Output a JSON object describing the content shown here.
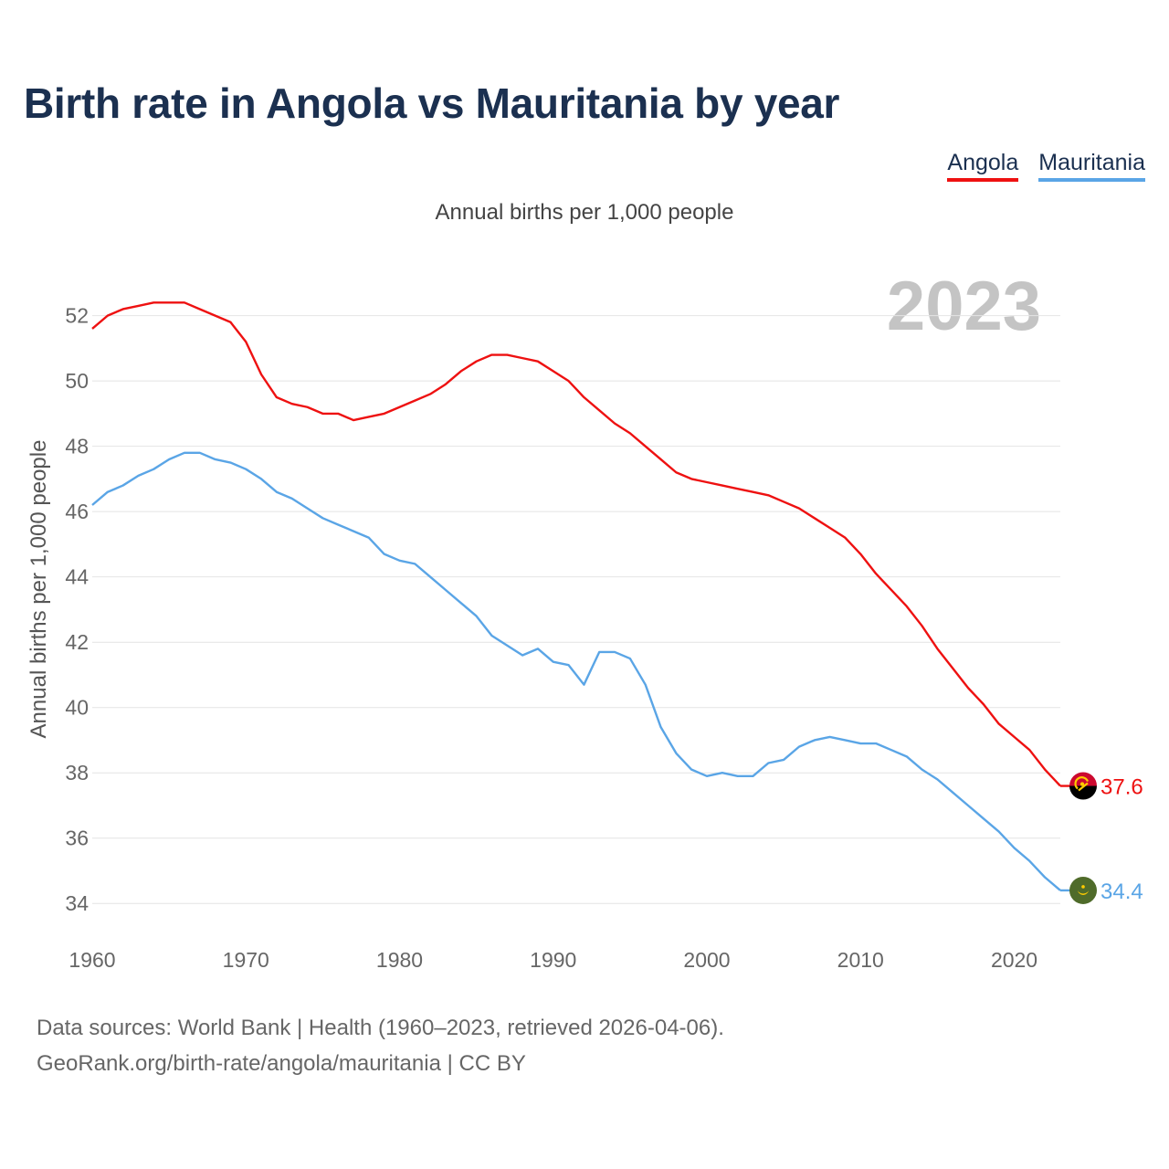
{
  "chart_data": {
    "type": "line",
    "title": "Birth rate in Angola vs Mauritania by year",
    "subtitle": "Annual births per 1,000 people",
    "ylabel": "Annual births per 1,000 people",
    "xlabel": "",
    "year_badge": "2023",
    "xlim": [
      1960,
      2023
    ],
    "ylim": [
      33,
      53.5
    ],
    "x_ticks": [
      1960,
      1970,
      1980,
      1990,
      2000,
      2010,
      2020
    ],
    "y_ticks": [
      34,
      36,
      38,
      40,
      42,
      44,
      46,
      48,
      50,
      52
    ],
    "grid": true,
    "legend_position": "top-right",
    "x": [
      1960,
      1961,
      1962,
      1963,
      1964,
      1965,
      1966,
      1967,
      1968,
      1969,
      1970,
      1971,
      1972,
      1973,
      1974,
      1975,
      1976,
      1977,
      1978,
      1979,
      1980,
      1981,
      1982,
      1983,
      1984,
      1985,
      1986,
      1987,
      1988,
      1989,
      1990,
      1991,
      1992,
      1993,
      1994,
      1995,
      1996,
      1997,
      1998,
      1999,
      2000,
      2001,
      2002,
      2003,
      2004,
      2005,
      2006,
      2007,
      2008,
      2009,
      2010,
      2011,
      2012,
      2013,
      2014,
      2015,
      2016,
      2017,
      2018,
      2019,
      2020,
      2021,
      2022,
      2023
    ],
    "series": [
      {
        "name": "Angola",
        "color": "#ee1111",
        "end_label": "37.6",
        "flag": "angola-flag-icon",
        "values": [
          51.6,
          52.0,
          52.2,
          52.3,
          52.4,
          52.4,
          52.4,
          52.2,
          52.0,
          51.8,
          51.2,
          50.2,
          49.5,
          49.3,
          49.2,
          49.0,
          49.0,
          48.8,
          48.9,
          49.0,
          49.2,
          49.4,
          49.6,
          49.9,
          50.3,
          50.6,
          50.8,
          50.8,
          50.7,
          50.6,
          50.3,
          50.0,
          49.5,
          49.1,
          48.7,
          48.4,
          48.0,
          47.6,
          47.2,
          47.0,
          46.9,
          46.8,
          46.7,
          46.6,
          46.5,
          46.3,
          46.1,
          45.8,
          45.5,
          45.2,
          44.7,
          44.1,
          43.6,
          43.1,
          42.5,
          41.8,
          41.2,
          40.6,
          40.1,
          39.5,
          39.1,
          38.7,
          38.1,
          37.6
        ]
      },
      {
        "name": "Mauritania",
        "color": "#5aa5e6",
        "end_label": "34.4",
        "flag": "mauritania-flag-icon",
        "values": [
          46.2,
          46.6,
          46.8,
          47.1,
          47.3,
          47.6,
          47.8,
          47.8,
          47.6,
          47.5,
          47.3,
          47.0,
          46.6,
          46.4,
          46.1,
          45.8,
          45.6,
          45.4,
          45.2,
          44.7,
          44.5,
          44.4,
          44.0,
          43.6,
          43.2,
          42.8,
          42.2,
          41.9,
          41.6,
          41.8,
          41.4,
          41.3,
          40.7,
          41.7,
          41.7,
          41.5,
          40.7,
          39.4,
          38.6,
          38.1,
          37.9,
          38.0,
          37.9,
          37.9,
          38.3,
          38.4,
          38.8,
          39.0,
          39.1,
          39.0,
          38.9,
          38.9,
          38.7,
          38.5,
          38.1,
          37.8,
          37.4,
          37.0,
          36.6,
          36.2,
          35.7,
          35.3,
          34.8,
          34.4
        ]
      }
    ]
  },
  "legend": {
    "items": [
      "Angola",
      "Mauritania"
    ]
  },
  "footer": {
    "source_line": "Data sources: World Bank | Health (1960–2023, retrieved 2026-04-06).",
    "credit_line": "GeoRank.org/birth-rate/angola/mauritania | CC BY"
  }
}
